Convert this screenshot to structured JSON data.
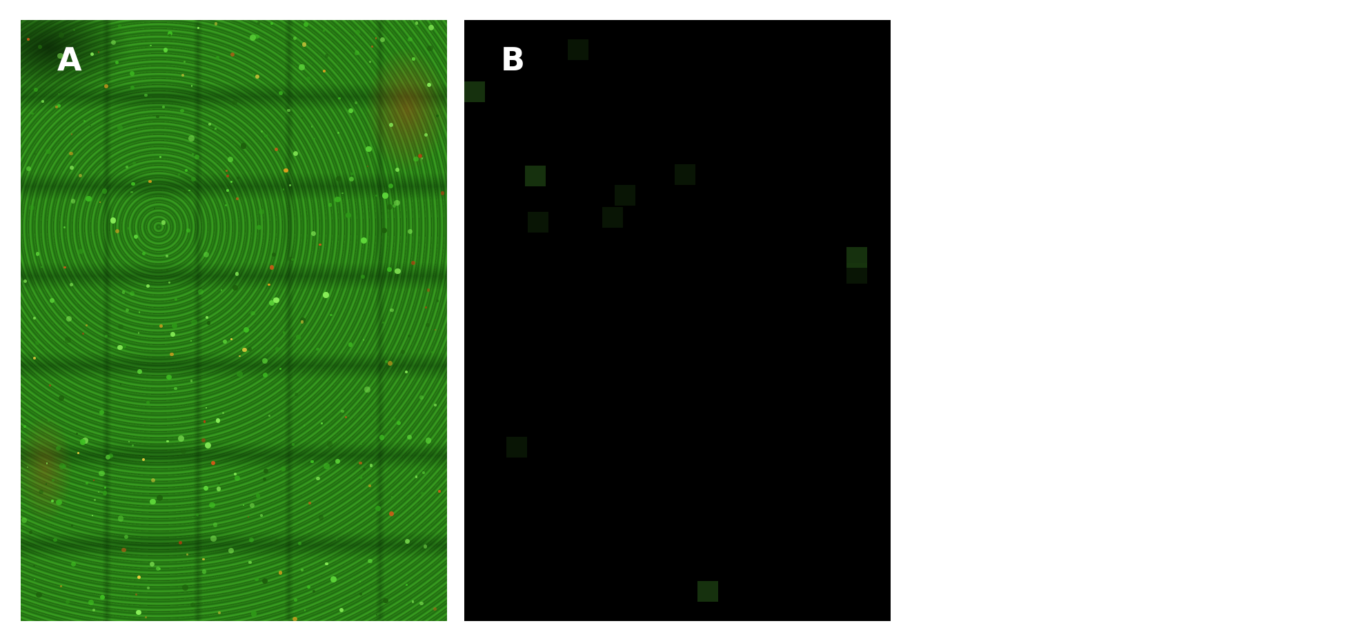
{
  "figure": {
    "panels": [
      {
        "label": "A",
        "description_color": "#27801a"
      },
      {
        "label": "B",
        "description_color": "#000000"
      }
    ]
  }
}
